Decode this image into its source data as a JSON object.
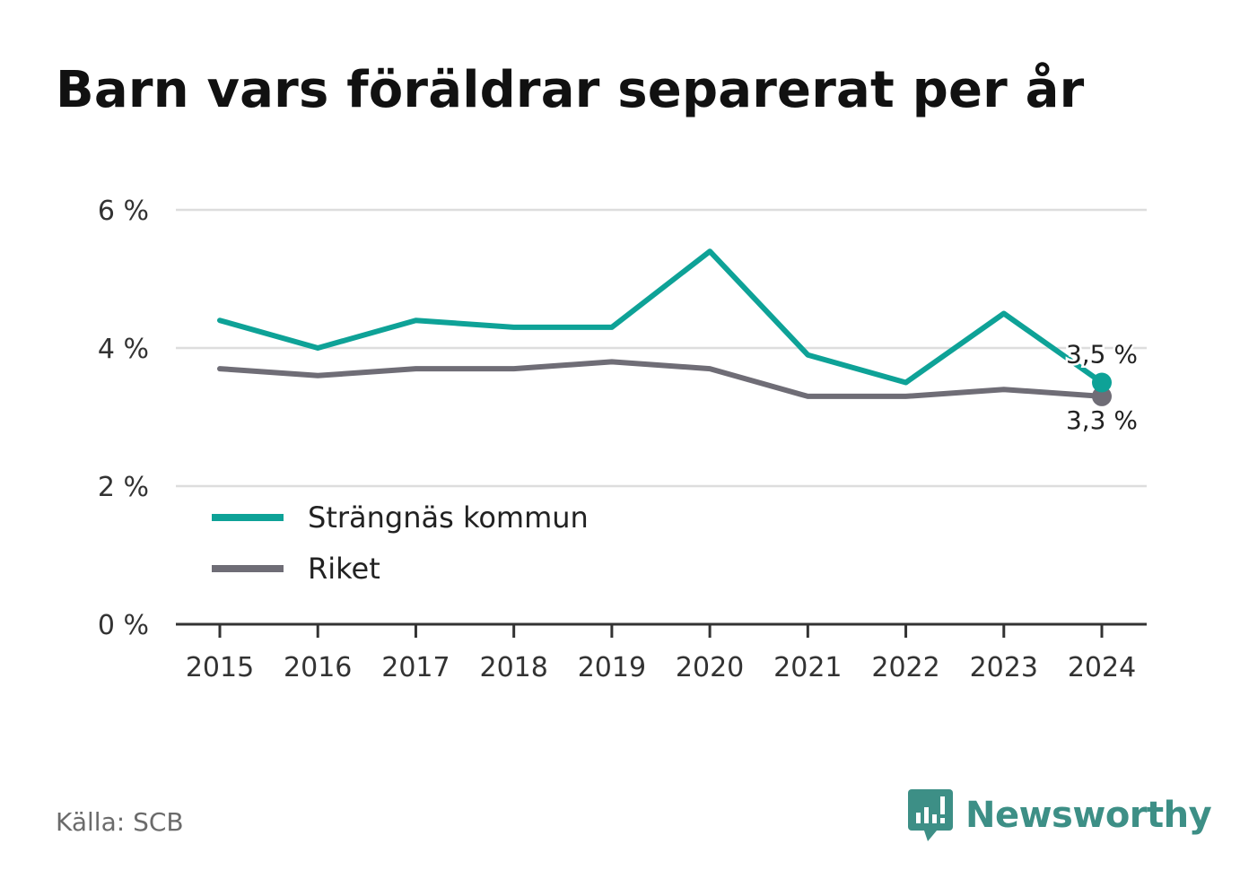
{
  "title": "Barn vars föräldrar separerat per år",
  "source": "Källa: SCB",
  "brand": {
    "name": "Newsworthy",
    "icon": "newsworthy-logo-icon",
    "color": "#3d8f86"
  },
  "colors": {
    "series_1": "#0ea297",
    "series_2": "#6f6d76",
    "grid": "#dddddd",
    "axis": "#333333"
  },
  "chart_data": {
    "type": "line",
    "x": [
      "2015",
      "2016",
      "2017",
      "2018",
      "2019",
      "2020",
      "2021",
      "2022",
      "2023",
      "2024"
    ],
    "series": [
      {
        "name": "Strängnäs kommun",
        "values": [
          4.4,
          4.0,
          4.4,
          4.3,
          4.3,
          5.4,
          3.9,
          3.5,
          4.5,
          3.5
        ],
        "end_label": "3,5 %"
      },
      {
        "name": "Riket",
        "values": [
          3.7,
          3.6,
          3.7,
          3.7,
          3.8,
          3.7,
          3.3,
          3.3,
          3.4,
          3.3
        ],
        "end_label": "3,3 %"
      }
    ],
    "ylim": [
      0,
      6
    ],
    "yticks": [
      0,
      2,
      4,
      6
    ],
    "ytick_labels": [
      "0 %",
      "2 %",
      "4 %",
      "6 %"
    ],
    "xlabel": "",
    "ylabel": "",
    "grid": true,
    "legend_position": "bottom-left"
  }
}
